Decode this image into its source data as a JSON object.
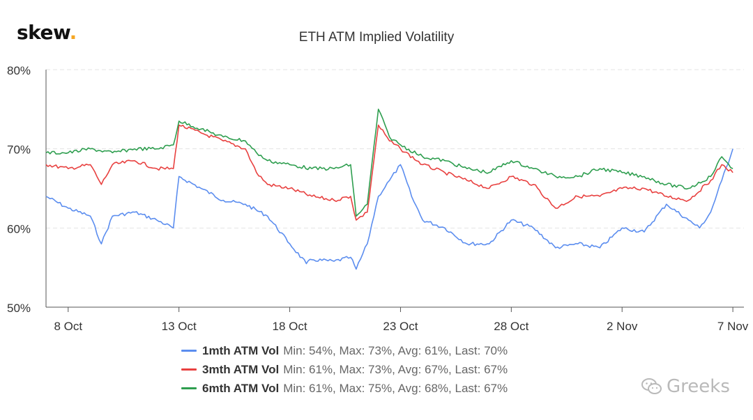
{
  "brand": {
    "logo_text": "skew",
    "logo_dot": "."
  },
  "watermark": {
    "text": "Greeks",
    "icon": "wechat-icon"
  },
  "chart_data": {
    "type": "line",
    "title": "ETH ATM Implied Volatility",
    "xlabel": "",
    "ylabel": "",
    "x_ticks": [
      "8 Oct",
      "13 Oct",
      "18 Oct",
      "23 Oct",
      "28 Oct",
      "2 Nov",
      "7 Nov"
    ],
    "x_range": [
      "2020-10-07",
      "2020-11-07"
    ],
    "y_ticks": [
      "50%",
      "60%",
      "70%",
      "80%"
    ],
    "ylim": [
      50,
      80
    ],
    "grid": true,
    "legend_position": "bottom",
    "series": [
      {
        "name": "1mth ATM Vol",
        "stats": "Min: 54%, Max: 73%, Avg: 61%, Last: 70%",
        "color": "#5b8def",
        "x": [
          "2020-10-07",
          "2020-10-08",
          "2020-10-09",
          "2020-10-09 12:00",
          "2020-10-10",
          "2020-10-11",
          "2020-10-12",
          "2020-10-12 18:00",
          "2020-10-13",
          "2020-10-14",
          "2020-10-15",
          "2020-10-16",
          "2020-10-17",
          "2020-10-18",
          "2020-10-18 18:00",
          "2020-10-19",
          "2020-10-20",
          "2020-10-20 18:00",
          "2020-10-21",
          "2020-10-21 12:00",
          "2020-10-22",
          "2020-10-22 12:00",
          "2020-10-23",
          "2020-10-23 12:00",
          "2020-10-24",
          "2020-10-25",
          "2020-10-26",
          "2020-10-27",
          "2020-10-28",
          "2020-10-29",
          "2020-10-30",
          "2020-10-31",
          "2020-11-01",
          "2020-11-02",
          "2020-11-03",
          "2020-11-04",
          "2020-11-05",
          "2020-11-05 12:00",
          "2020-11-06",
          "2020-11-06 12:00",
          "2020-11-07"
        ],
        "values": [
          64,
          62.5,
          61.5,
          58,
          61.5,
          62,
          61,
          60,
          66.5,
          65,
          63.5,
          63,
          61.5,
          58,
          55.5,
          56,
          55.8,
          56.3,
          54.8,
          58,
          64,
          66,
          68,
          64,
          61,
          60,
          58,
          58,
          61,
          60,
          57.5,
          58,
          57.5,
          60,
          59.5,
          63,
          61,
          60,
          62,
          66,
          70
        ]
      },
      {
        "name": "3mth ATM Vol",
        "stats": "Min: 61%, Max: 73%, Avg: 67%, Last: 67%",
        "color": "#e8403f",
        "x": [
          "2020-10-07",
          "2020-10-08",
          "2020-10-09",
          "2020-10-09 12:00",
          "2020-10-10",
          "2020-10-11",
          "2020-10-12",
          "2020-10-12 18:00",
          "2020-10-13",
          "2020-10-14",
          "2020-10-15",
          "2020-10-16",
          "2020-10-16 12:00",
          "2020-10-17",
          "2020-10-18",
          "2020-10-19",
          "2020-10-20",
          "2020-10-20 18:00",
          "2020-10-21",
          "2020-10-21 12:00",
          "2020-10-22",
          "2020-10-22 12:00",
          "2020-10-23",
          "2020-10-24",
          "2020-10-25",
          "2020-10-26",
          "2020-10-27",
          "2020-10-28",
          "2020-10-29",
          "2020-10-30",
          "2020-10-31",
          "2020-11-01",
          "2020-11-02",
          "2020-11-03",
          "2020-11-04",
          "2020-11-05",
          "2020-11-06",
          "2020-11-06 12:00",
          "2020-11-07"
        ],
        "values": [
          68,
          67.5,
          68,
          65.5,
          68,
          68.5,
          67.5,
          67.5,
          73,
          72,
          71,
          70,
          67,
          65.5,
          65,
          64,
          63.5,
          64,
          61,
          62,
          73,
          71,
          70,
          68,
          67,
          66,
          65,
          66.5,
          65.5,
          62.5,
          64,
          64,
          65,
          65,
          64,
          63.5,
          66,
          68,
          67
        ]
      },
      {
        "name": "6mth ATM Vol",
        "stats": "Min: 61%, Max: 75%, Avg: 68%, Last: 67%",
        "color": "#2e9e4f",
        "x": [
          "2020-10-07",
          "2020-10-08",
          "2020-10-09",
          "2020-10-10",
          "2020-10-11",
          "2020-10-12",
          "2020-10-12 18:00",
          "2020-10-13",
          "2020-10-14",
          "2020-10-15",
          "2020-10-16",
          "2020-10-16 12:00",
          "2020-10-17",
          "2020-10-18",
          "2020-10-19",
          "2020-10-20",
          "2020-10-20 18:00",
          "2020-10-21",
          "2020-10-21 12:00",
          "2020-10-22",
          "2020-10-22 12:00",
          "2020-10-23",
          "2020-10-24",
          "2020-10-25",
          "2020-10-26",
          "2020-10-27",
          "2020-10-28",
          "2020-10-29",
          "2020-10-30",
          "2020-10-31",
          "2020-11-01",
          "2020-11-02",
          "2020-11-03",
          "2020-11-04",
          "2020-11-05",
          "2020-11-06",
          "2020-11-06 12:00",
          "2020-11-07"
        ],
        "values": [
          69.5,
          69.5,
          70,
          69.5,
          70,
          70,
          70.5,
          73.5,
          72.5,
          71.5,
          71,
          69.5,
          68.5,
          68,
          67.5,
          67.5,
          68,
          61.5,
          63,
          75,
          71.5,
          70.5,
          69,
          68.5,
          67.5,
          67,
          68.5,
          67.5,
          66.5,
          66.5,
          67.5,
          67,
          66.5,
          65.5,
          65,
          66.5,
          69,
          67.5
        ]
      }
    ]
  }
}
